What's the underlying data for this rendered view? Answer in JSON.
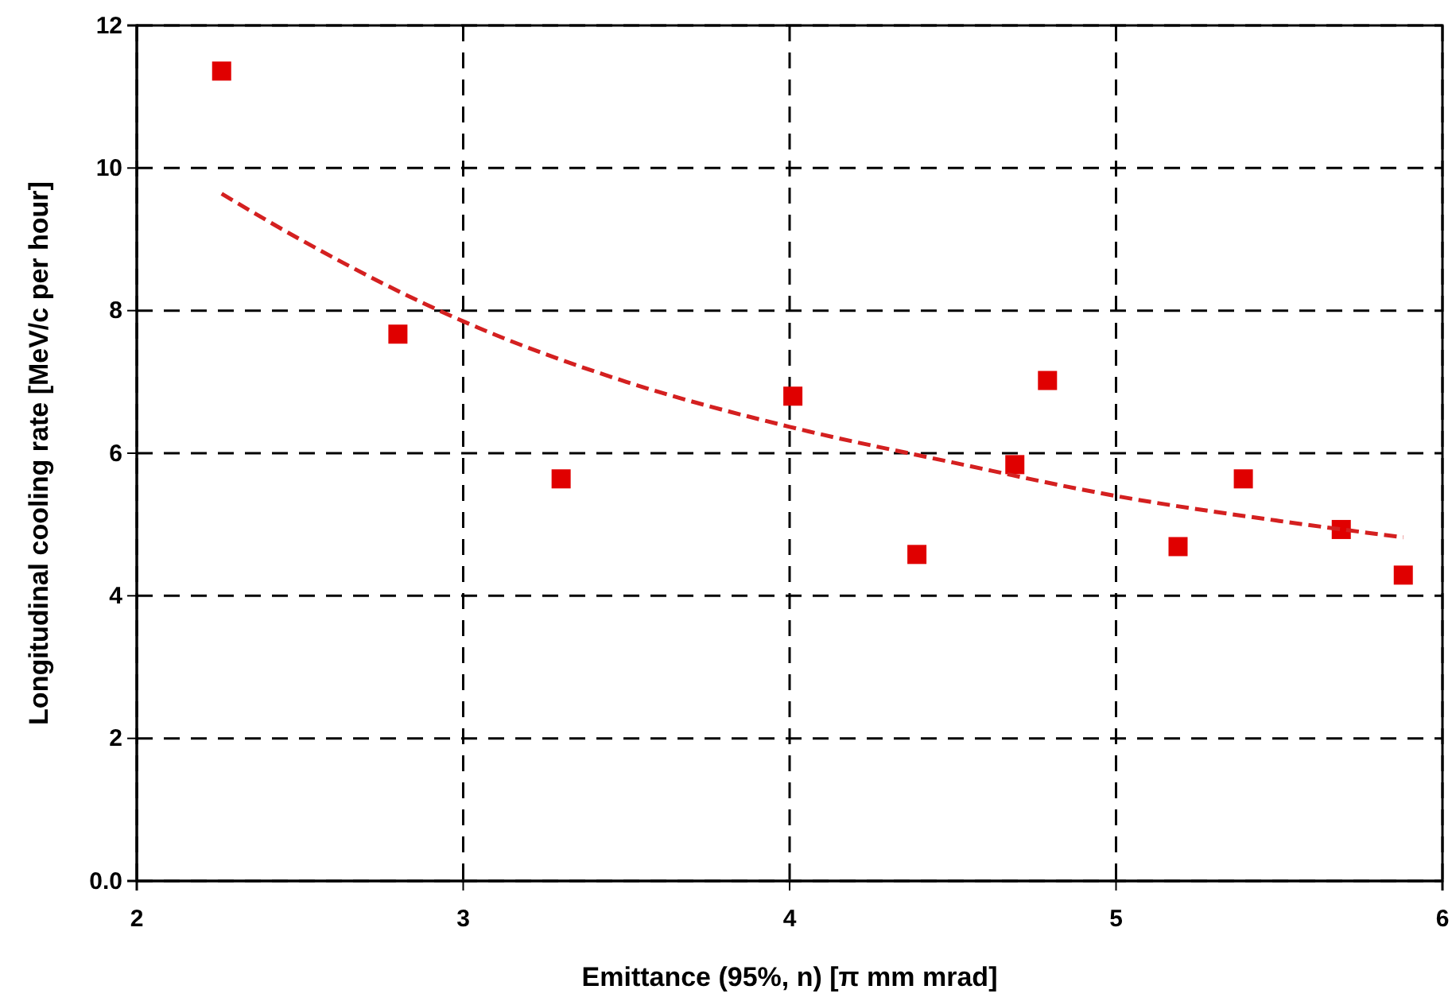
{
  "chart_data": {
    "type": "scatter",
    "xlabel": "Emittance (95%, n) [π mm mrad]",
    "ylabel": "Longitudinal cooling rate [MeV/c per hour]",
    "xlim": [
      2,
      6
    ],
    "ylim": [
      0,
      12
    ],
    "xticks": [
      2,
      3,
      4,
      5,
      6
    ],
    "yticks": [
      {
        "value": 0,
        "label": "0.0"
      },
      2,
      4,
      6,
      8,
      10,
      12
    ],
    "grid": true,
    "marker": "square",
    "series": [
      {
        "color": "#e00000",
        "x": [
          2.26,
          2.8,
          3.3,
          4.01,
          4.39,
          4.69,
          4.79,
          5.19,
          5.39,
          5.69,
          5.88
        ],
        "values": [
          11.36,
          7.67,
          5.64,
          6.8,
          4.58,
          5.84,
          7.02,
          4.69,
          5.64,
          4.93,
          4.29
        ]
      },
      {
        "type": "line",
        "color": "#d42020",
        "line_style": "dashed",
        "marker": "none",
        "x": [
          2.26,
          2.5,
          3,
          3.5,
          4,
          4.5,
          5,
          5.5,
          5.88
        ],
        "values": [
          9.64,
          9.0,
          7.85,
          7.0,
          6.37,
          5.87,
          5.4,
          5.05,
          4.82
        ]
      }
    ]
  }
}
